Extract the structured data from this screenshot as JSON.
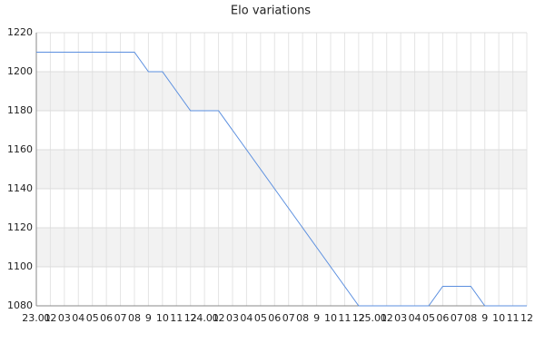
{
  "chart_data": {
    "type": "line",
    "title": "Elo variations",
    "categories": [
      "23.01",
      "02",
      "03",
      "04",
      "05",
      "06",
      "07",
      "08",
      "9",
      "10",
      "11",
      "12",
      "24.01",
      "02",
      "03",
      "04",
      "05",
      "06",
      "07",
      "08",
      "9",
      "10",
      "11",
      "12",
      "25.01",
      "02",
      "03",
      "04",
      "05",
      "06",
      "07",
      "08",
      "9",
      "10",
      "11",
      "12"
    ],
    "values": [
      1210,
      1210,
      1210,
      1210,
      1210,
      1210,
      1210,
      1210,
      1200,
      1200,
      1190,
      1180,
      1180,
      1180,
      1170,
      1160,
      1150,
      1140,
      1130,
      1120,
      1110,
      1100,
      1090,
      1080,
      1080,
      1080,
      1080,
      1080,
      1080,
      1090,
      1090,
      1090,
      1080,
      1080,
      1080,
      1080
    ],
    "color": "#5b8fdf",
    "ylim": [
      1080,
      1220
    ],
    "yticks": [
      1080,
      1100,
      1120,
      1140,
      1160,
      1180,
      1200,
      1220
    ],
    "grid": true
  }
}
